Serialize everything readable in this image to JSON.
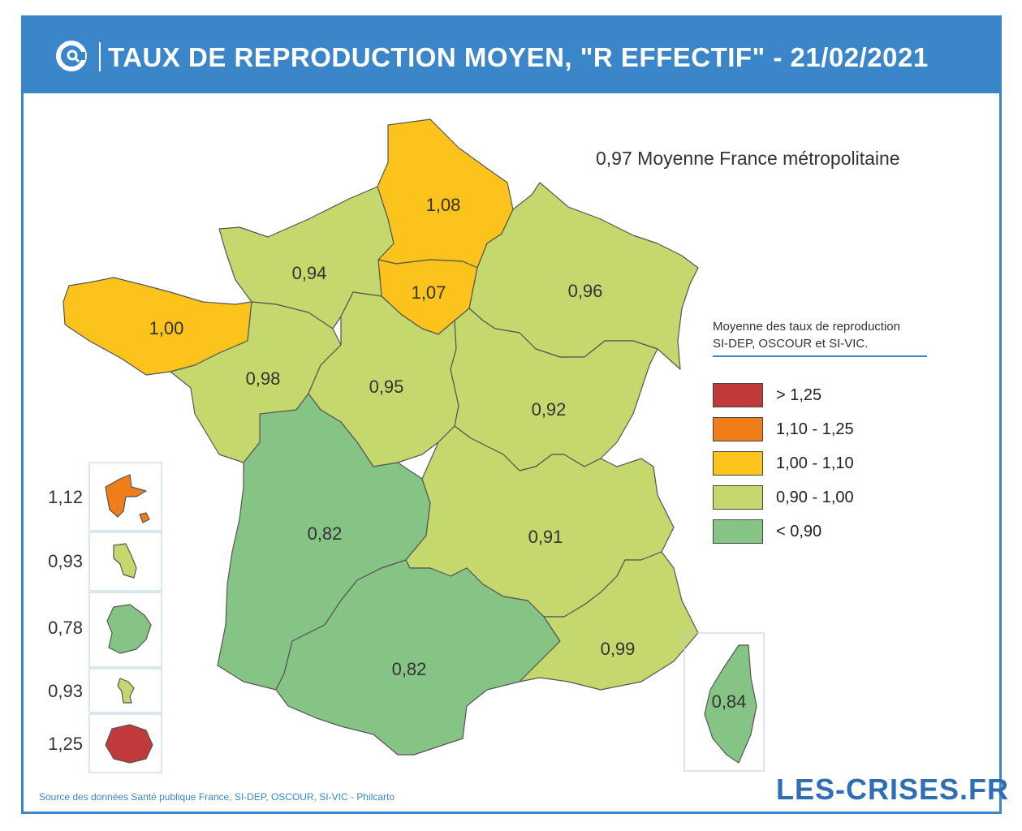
{
  "header": {
    "title": "TAUX DE REPRODUCTION MOYEN, \"R EFFECTIF\" - 21/02/2021",
    "logo_icon": "les-crises-logo-icon"
  },
  "subtitle": "0,97 Moyenne France métropolitaine",
  "legend": {
    "title_line1": "Moyenne des taux de reproduction",
    "title_line2": "SI-DEP, OSCOUR et SI-VIC.",
    "items": [
      {
        "label": "> 1,25",
        "color": "#c0393b"
      },
      {
        "label": "1,10 - 1,25",
        "color": "#ef7d1a"
      },
      {
        "label": "1,00 - 1,10",
        "color": "#fcc31c"
      },
      {
        "label": "0,90 - 1,00",
        "color": "#c5d86d"
      },
      {
        "label": "< 0,90",
        "color": "#86c485"
      }
    ]
  },
  "regions": [
    {
      "name": "Hauts-de-France",
      "value": "1,08",
      "color": "#fcc31c"
    },
    {
      "name": "Île-de-France",
      "value": "1,07",
      "color": "#fcc31c"
    },
    {
      "name": "Normandie",
      "value": "0,94",
      "color": "#c5d86d"
    },
    {
      "name": "Bretagne",
      "value": "1,00",
      "color": "#fcc31c"
    },
    {
      "name": "Pays de la Loire",
      "value": "0,98",
      "color": "#c5d86d"
    },
    {
      "name": "Centre-Val de Loire",
      "value": "0,95",
      "color": "#c5d86d"
    },
    {
      "name": "Grand Est",
      "value": "0,96",
      "color": "#c5d86d"
    },
    {
      "name": "Bourgogne-Franche-Comté",
      "value": "0,92",
      "color": "#c5d86d"
    },
    {
      "name": "Nouvelle-Aquitaine",
      "value": "0,82",
      "color": "#86c485"
    },
    {
      "name": "Auvergne-Rhône-Alpes",
      "value": "0,91",
      "color": "#c5d86d"
    },
    {
      "name": "Occitanie",
      "value": "0,82",
      "color": "#86c485"
    },
    {
      "name": "Provence-Alpes-Côte d'Azur",
      "value": "0,99",
      "color": "#c5d86d"
    },
    {
      "name": "Corse",
      "value": "0,84",
      "color": "#86c485"
    }
  ],
  "overseas": [
    {
      "name": "Guadeloupe",
      "value": "1,12",
      "color": "#ef7d1a"
    },
    {
      "name": "Martinique",
      "value": "0,93",
      "color": "#c5d86d"
    },
    {
      "name": "Guyane",
      "value": "0,78",
      "color": "#86c485"
    },
    {
      "name": "Mayotte",
      "value": "0,93",
      "color": "#c5d86d"
    },
    {
      "name": "La Réunion",
      "value": "1,25",
      "color": "#c0393b"
    }
  ],
  "source": "Source des données Santé publique France, SI-DEP, OSCOUR, SI-VIC - Philcarto",
  "brand": "LES-CRISES.FR"
}
